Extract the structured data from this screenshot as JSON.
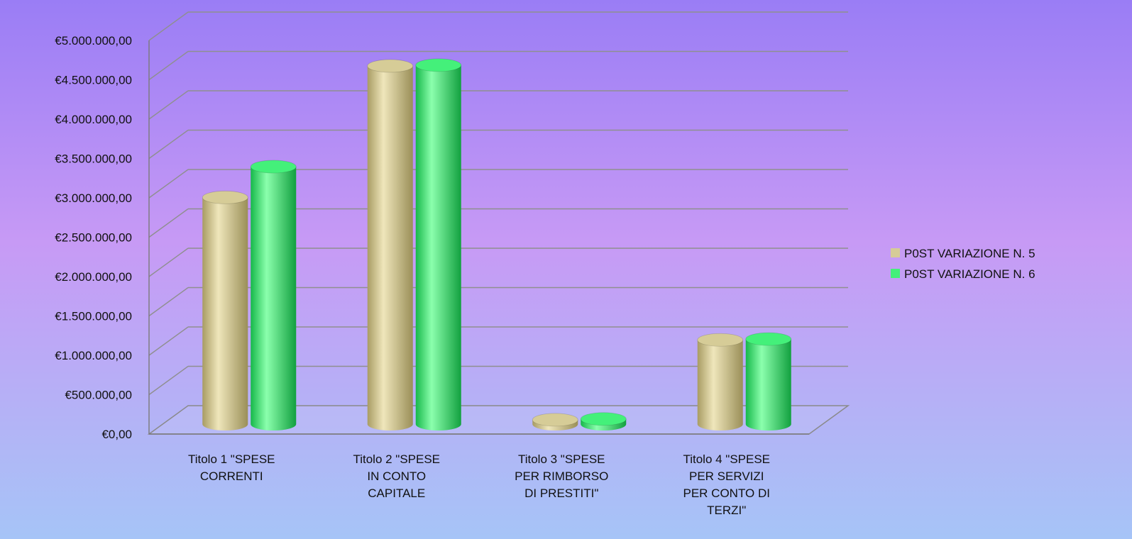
{
  "chart_data": {
    "type": "bar",
    "style": "3d-cylinder",
    "categories": [
      [
        "Titolo 1 \"SPESE",
        "CORRENTI"
      ],
      [
        "Titolo 2 \"SPESE",
        "IN CONTO",
        "CAPITALE"
      ],
      [
        "Titolo 3 \"SPESE",
        "PER RIMBORSO",
        "DI PRESTITI\""
      ],
      [
        "Titolo 4 \"SPESE",
        "PER SERVIZI",
        "PER CONTO DI",
        "TERZI\""
      ]
    ],
    "series": [
      {
        "name": "P0ST VARIAZIONE N. 5",
        "color": "#d6cc97",
        "values": [
          2880000,
          4550000,
          55000,
          1070000
        ]
      },
      {
        "name": "P0ST VARIAZIONE N. 6",
        "color": "#44f07a",
        "values": [
          3270000,
          4560000,
          65000,
          1080000
        ]
      }
    ],
    "ylim": [
      0,
      5000000
    ],
    "ytick_step": 500000,
    "ytick_labels": [
      "€0,00",
      "€500.000,00",
      "€1.000.000,00",
      "€1.500.000,00",
      "€2.000.000,00",
      "€2.500.000,00",
      "€3.000.000,00",
      "€3.500.000,00",
      "€4.000.000,00",
      "€4.500.000,00",
      "€5.000.000,00"
    ],
    "title": "",
    "xlabel": "",
    "ylabel": "",
    "grid": true,
    "legend_position": "right",
    "background_colors": [
      "#9a7df5",
      "#c79af5",
      "#a6c4f7"
    ]
  }
}
